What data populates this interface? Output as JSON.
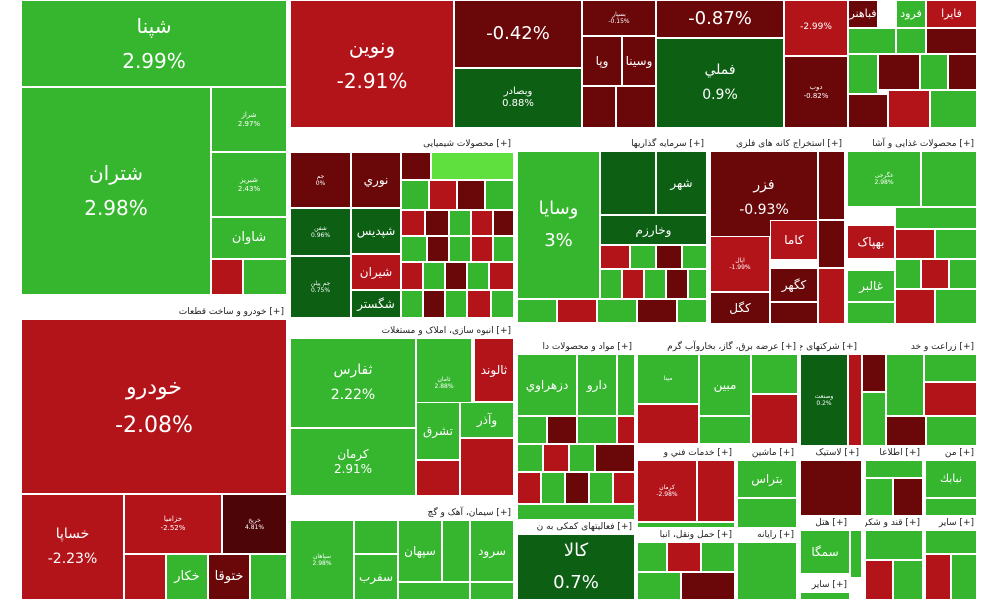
{
  "chart_data": {
    "type": "heatmap",
    "colors": {
      "dark-green": "#0c5f13",
      "mid-green": "#1a9a1e",
      "light-green": "#36b62f",
      "bright-green": "#5fe03e",
      "mid-red": "#b3141a",
      "dark-red": "#6a0709",
      "maroon": "#4d0508"
    },
    "groups": [
      {
        "label": "[+] خودرو و ساخت قطعات"
      },
      {
        "label": "[+] محصولات شیمیایی"
      },
      {
        "label": "[+] سرمایه گذاریها"
      },
      {
        "label": "[+] استخراج کانه های فلزی"
      },
      {
        "label": "[+] محصولات غذایی و آشا"
      },
      {
        "label": "[+] انبوه سازی، املاک و مستغلات"
      },
      {
        "label": "[+] مواد و محصولات دا"
      },
      {
        "label": "[+] عرضه برق، گاز، بخاروآب گرم"
      },
      {
        "label": "[+] شرکتهای چند"
      },
      {
        "label": "[+] زراعت و خد"
      },
      {
        "label": "[+] سیمان، آهک و گچ"
      },
      {
        "label": "[+] فعالیتهای کمکی به ن"
      },
      {
        "label": "[+] خدمات فني و"
      },
      {
        "label": "[+] ماشين"
      },
      {
        "label": "[+] لاستیک"
      },
      {
        "label": "[+] اطلاعا"
      },
      {
        "label": "[+] من"
      },
      {
        "label": "[+] حمل ونقل، انبا"
      },
      {
        "label": "[+] رایانه"
      },
      {
        "label": "[+] هتل"
      },
      {
        "label": "[+] قند و شكر"
      },
      {
        "label": "[+] ساير"
      },
      {
        "label": "[+] ساير"
      }
    ],
    "tiles": [
      {
        "name": "شپنا",
        "change": "2.99%",
        "color": "light-green"
      },
      {
        "name": "شتران",
        "change": "2.98%",
        "color": "light-green"
      },
      {
        "name": "شراز",
        "change": "2.97%",
        "color": "light-green"
      },
      {
        "name": "شبریز",
        "change": "2.43%",
        "color": "light-green"
      },
      {
        "name": "شاوان",
        "change": "",
        "color": "light-green"
      },
      {
        "name": "ونوین",
        "change": "-2.91%",
        "color": "mid-red"
      },
      {
        "name": "",
        "change": "-0.42%",
        "color": "dark-red"
      },
      {
        "name": "",
        "change": "-0.87%",
        "color": "dark-red"
      },
      {
        "name": "",
        "change": "-2.99%",
        "color": "mid-red"
      },
      {
        "name": "وبصادر",
        "change": "0.88%",
        "color": "dark-green"
      },
      {
        "name": "فملي",
        "change": "0.9%",
        "color": "dark-green"
      },
      {
        "name": "دوب",
        "change": "-0.82%",
        "color": "dark-red"
      },
      {
        "name": "بسپار",
        "change": "-0.15%",
        "color": "dark-red"
      },
      {
        "name": "وپا",
        "change": "",
        "color": "dark-red"
      },
      {
        "name": "وسينا",
        "change": "",
        "color": "dark-red"
      },
      {
        "name": "فباهنر",
        "change": "",
        "color": "dark-red"
      },
      {
        "name": "فرود",
        "change": "",
        "color": "light-green"
      },
      {
        "name": "فايرا",
        "change": "",
        "color": "mid-red"
      },
      {
        "name": "خودرو",
        "change": "-2.08%",
        "color": "mid-red"
      },
      {
        "name": "خساپا",
        "change": "-2.23%",
        "color": "mid-red"
      },
      {
        "name": "خزامیا",
        "change": "-2.52%",
        "color": "mid-red"
      },
      {
        "name": "خریخ",
        "change": "4.81%",
        "color": "maroon"
      },
      {
        "name": "خكار",
        "change": "",
        "color": "light-green"
      },
      {
        "name": "ختوقا",
        "change": "",
        "color": "dark-red"
      },
      {
        "name": "نوري",
        "change": "",
        "color": "dark-red"
      },
      {
        "name": "جم",
        "change": "0%",
        "color": "dark-red"
      },
      {
        "name": "شفن",
        "change": "0.96%",
        "color": "dark-green"
      },
      {
        "name": "شپدیس",
        "change": "",
        "color": "dark-green"
      },
      {
        "name": "شیران",
        "change": "",
        "color": "mid-red"
      },
      {
        "name": "شگستر",
        "change": "",
        "color": "dark-green"
      },
      {
        "name": "جم پیلن",
        "change": "0.75%",
        "color": "dark-green"
      },
      {
        "name": "وسایا",
        "change": "3%",
        "color": "light-green"
      },
      {
        "name": "شهر",
        "change": "",
        "color": "dark-green"
      },
      {
        "name": "وخارزم",
        "change": "",
        "color": "dark-green"
      },
      {
        "name": "فزر",
        "change": "-0.93%",
        "color": "dark-red"
      },
      {
        "name": "كاما",
        "change": "",
        "color": "mid-red"
      },
      {
        "name": "کگهر",
        "change": "",
        "color": "dark-red"
      },
      {
        "name": "کگل",
        "change": "",
        "color": "dark-red"
      },
      {
        "name": "اپال",
        "change": "-1.99%",
        "color": "mid-red"
      },
      {
        "name": "غگرجی",
        "change": "2.98%",
        "color": "light-green"
      },
      {
        "name": "بهپاک",
        "change": "",
        "color": "mid-red"
      },
      {
        "name": "غالبر",
        "change": "",
        "color": "light-green"
      },
      {
        "name": "ثفارس",
        "change": "2.22%",
        "color": "light-green"
      },
      {
        "name": "ثامان",
        "change": "2.88%",
        "color": "light-green"
      },
      {
        "name": "كرمان",
        "change": "2.91%",
        "color": "light-green"
      },
      {
        "name": "ثالوند",
        "change": "",
        "color": "mid-red"
      },
      {
        "name": "تشرق",
        "change": "",
        "color": "light-green"
      },
      {
        "name": "وآذر",
        "change": "",
        "color": "light-green"
      },
      {
        "name": "دزهراوي",
        "change": "",
        "color": "light-green"
      },
      {
        "name": "دارو",
        "change": "",
        "color": "light-green"
      },
      {
        "name": "مپنا",
        "change": "",
        "color": "light-green"
      },
      {
        "name": "مبين",
        "change": "",
        "color": "light-green"
      },
      {
        "name": "وصنعت",
        "change": "0.2%",
        "color": "dark-green"
      },
      {
        "name": "سپاهان",
        "change": "2.98%",
        "color": "light-green"
      },
      {
        "name": "سفرب",
        "change": "",
        "color": "light-green"
      },
      {
        "name": "سپهان",
        "change": "",
        "color": "light-green"
      },
      {
        "name": "سرود",
        "change": "",
        "color": "light-green"
      },
      {
        "name": "کالا",
        "change": "0.7%",
        "color": "dark-green"
      },
      {
        "name": "کرمان",
        "change": "-2.98%",
        "color": "mid-red"
      },
      {
        "name": "بتراس",
        "change": "",
        "color": "light-green"
      },
      {
        "name": "نبابك",
        "change": "",
        "color": "light-green"
      },
      {
        "name": "سمگا",
        "change": "",
        "color": "light-green"
      }
    ]
  }
}
